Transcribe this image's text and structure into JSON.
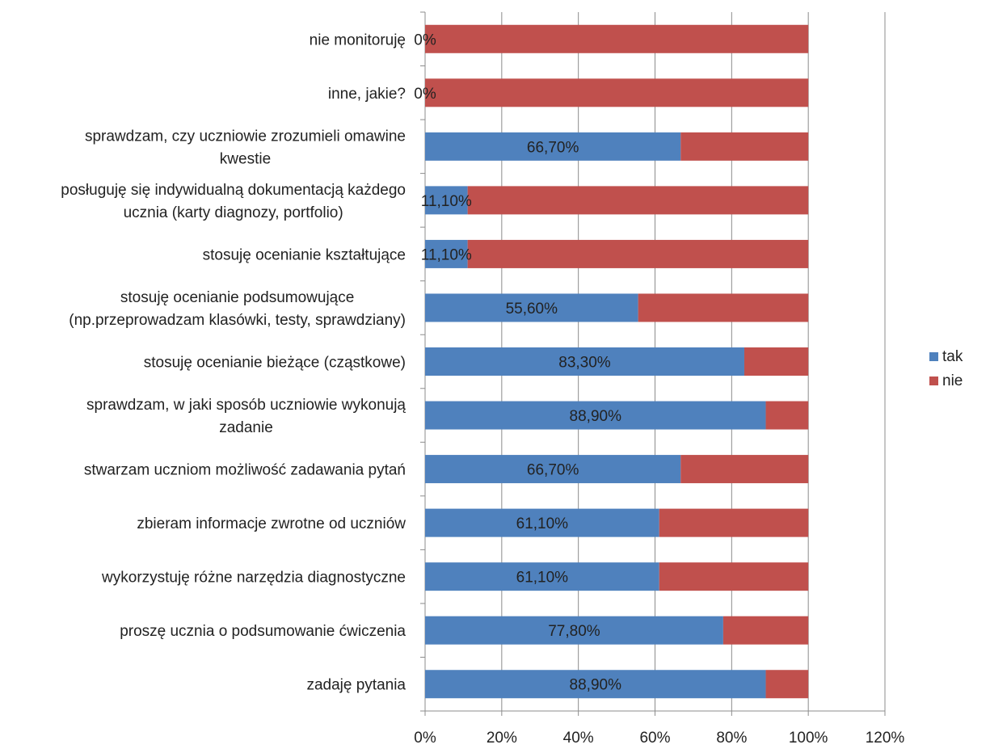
{
  "chart_data": {
    "type": "bar",
    "orientation": "horizontal",
    "stacked": true,
    "categories": [
      "nie monitoruję",
      "inne, jakie?",
      "sprawdzam, czy uczniowie zrozumieli omawine kwestie",
      "posługuję się indywidualną dokumentacją każdego ucznia (karty diagnozy, portfolio)",
      "stosuję ocenianie kształtujące",
      "stosuję ocenianie podsumowujące (np.przeprowadzam klasówki, testy, sprawdziany)",
      "stosuję ocenianie bieżące (cząstkowe)",
      "sprawdzam, w jaki sposób uczniowie wykonują zadanie",
      "stwarzam uczniom możliwość zadawania pytań",
      "zbieram informacje zwrotne od uczniów",
      "wykorzystuję różne narzędzia diagnostyczne",
      "proszę ucznia o podsumowanie ćwiczenia",
      "zadaję pytania"
    ],
    "category_label_lines": [
      [
        "nie monitoruję"
      ],
      [
        "inne, jakie?"
      ],
      [
        "sprawdzam, czy uczniowie zrozumieli omawine",
        "kwestie"
      ],
      [
        "posługuję się indywidualną dokumentacją każdego",
        "ucznia (karty diagnozy, portfolio)"
      ],
      [
        "stosuję ocenianie kształtujące"
      ],
      [
        "stosuję ocenianie podsumowujące",
        "(np.przeprowadzam klasówki, testy, sprawdziany)"
      ],
      [
        "stosuję ocenianie bieżące (cząstkowe)"
      ],
      [
        "sprawdzam, w jaki sposób uczniowie wykonują",
        "zadanie"
      ],
      [
        "stwarzam uczniom możliwość zadawania pytań"
      ],
      [
        "zbieram informacje zwrotne od uczniów"
      ],
      [
        "wykorzystuję różne narzędzia diagnostyczne"
      ],
      [
        "proszę ucznia o podsumowanie ćwiczenia"
      ],
      [
        "zadaję pytania"
      ]
    ],
    "series": [
      {
        "name": "tak",
        "color": "#4f81bd",
        "values": [
          0,
          0,
          66.7,
          11.1,
          11.1,
          55.6,
          83.3,
          88.9,
          66.7,
          61.1,
          61.1,
          77.8,
          88.9
        ],
        "data_labels": [
          "0%",
          "0%",
          "66,70%",
          "11,10%",
          "11,10%",
          "55,60%",
          "83,30%",
          "88,90%",
          "66,70%",
          "61,10%",
          "61,10%",
          "77,80%",
          "88,90%"
        ]
      },
      {
        "name": "nie",
        "color": "#c0504d",
        "values": [
          100,
          100,
          33.3,
          88.9,
          88.9,
          44.4,
          16.7,
          11.1,
          33.3,
          38.9,
          38.9,
          22.2,
          11.1
        ]
      }
    ],
    "x_ticks": [
      0,
      20,
      40,
      60,
      80,
      100,
      120
    ],
    "x_tick_labels": [
      "0%",
      "20%",
      "40%",
      "60%",
      "80%",
      "100%",
      "120%"
    ],
    "xlim": [
      0,
      120
    ],
    "grid": true,
    "legend_position": "right"
  }
}
